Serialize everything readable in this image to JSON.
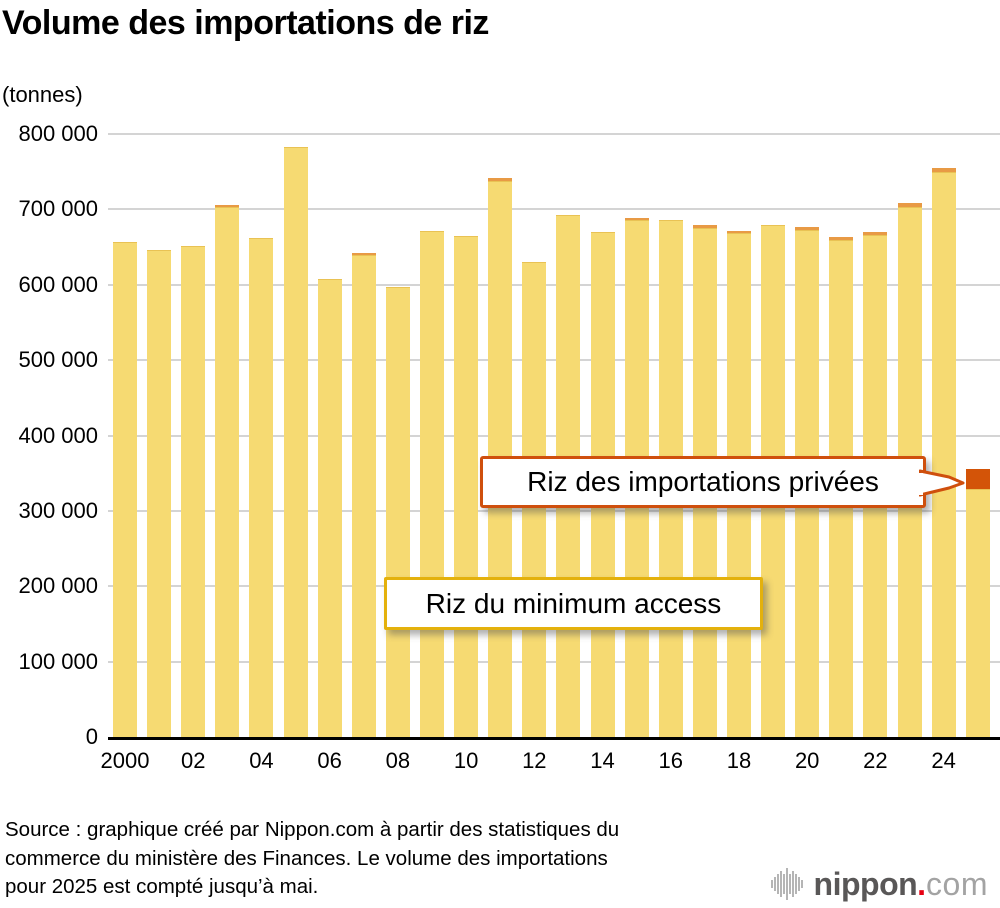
{
  "title": "Volume des importations de riz",
  "unit_label": "(tonnes)",
  "chart_data": {
    "type": "bar",
    "stacked": true,
    "x": [
      2000,
      2001,
      2002,
      2003,
      2004,
      2005,
      2006,
      2007,
      2008,
      2009,
      2010,
      2011,
      2012,
      2013,
      2014,
      2015,
      2016,
      2017,
      2018,
      2019,
      2020,
      2021,
      2022,
      2023,
      2024,
      2025
    ],
    "x_tick_labels": [
      "2000",
      "02",
      "04",
      "06",
      "08",
      "10",
      "12",
      "14",
      "16",
      "18",
      "20",
      "22",
      "24"
    ],
    "series": [
      {
        "name": "Riz du minimum access",
        "color": "#f6da72",
        "values": [
          657000,
          646000,
          651000,
          703000,
          662000,
          783000,
          608000,
          640000,
          597000,
          671000,
          665000,
          738000,
          630000,
          693000,
          670000,
          686000,
          686000,
          675000,
          669000,
          679000,
          673000,
          659000,
          666000,
          703000,
          749000,
          329000
        ]
      },
      {
        "name": "Riz des importations privées",
        "color": "#d35408",
        "small_cap_color": "#e89a45",
        "values": [
          0,
          0,
          0,
          3000,
          0,
          0,
          0,
          3000,
          0,
          0,
          0,
          4000,
          0,
          0,
          0,
          3000,
          0,
          4000,
          3000,
          0,
          4000,
          4000,
          4000,
          5000,
          5000,
          27000
        ]
      }
    ],
    "ylabel": "(tonnes)",
    "ylim": [
      0,
      800000
    ],
    "ytick_interval": 100000,
    "ytick_labels": [
      "0",
      "100 000",
      "200 000",
      "300 000",
      "400 000",
      "500 000",
      "600 000",
      "700 000",
      "800 000"
    ],
    "grid": true,
    "note": "Le volume des importations pour 2025 est compté jusqu’à mai."
  },
  "colors": {
    "grid": "#d4d4d4",
    "axis": "#000000",
    "callout_private_border": "#cf4f0d",
    "callout_ma_border": "#e4b10c",
    "logo_gray": "#595757",
    "logo_red": "#e60012"
  },
  "source": {
    "line1": "Source : graphique créé par Nippon.com à partir des statistiques du",
    "line2": "commerce du ministère des Finances. Le volume des importations",
    "line3": "pour 2025 est compté jusqu’à mai."
  },
  "logo": {
    "word": "nippon",
    "dot": ".",
    "tld": "com"
  }
}
